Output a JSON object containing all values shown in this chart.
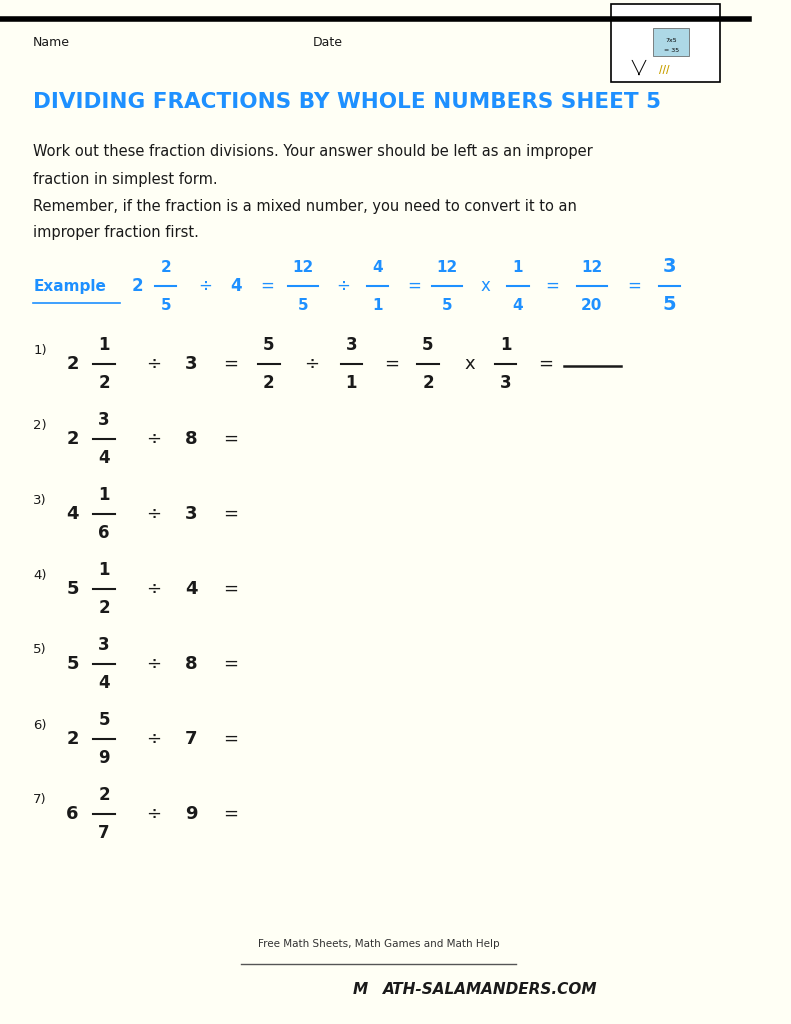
{
  "title": "DIVIDING FRACTIONS BY WHOLE NUMBERS SHEET 5",
  "title_color": "#1e90ff",
  "background_color": "#fffff5",
  "name_label": "Name",
  "date_label": "Date",
  "intro_line1": "Work out these fraction divisions. Your answer should be left as an improper",
  "intro_line2": "fraction in simplest form.",
  "intro_line3": "Remember, if the fraction is a mixed number, you need to convert it to an",
  "intro_line4": "improper fraction first.",
  "example_color": "#1e90ff",
  "text_color": "#1a1a1a",
  "problems": [
    {
      "num": "1",
      "whole": "2",
      "frac_n": "1",
      "frac_d": "2",
      "div": "3"
    },
    {
      "num": "2",
      "whole": "2",
      "frac_n": "3",
      "frac_d": "4",
      "div": "8"
    },
    {
      "num": "3",
      "whole": "4",
      "frac_n": "1",
      "frac_d": "6",
      "div": "3"
    },
    {
      "num": "4",
      "whole": "5",
      "frac_n": "1",
      "frac_d": "2",
      "div": "4"
    },
    {
      "num": "5",
      "whole": "5",
      "frac_n": "3",
      "frac_d": "4",
      "div": "8"
    },
    {
      "num": "6",
      "whole": "2",
      "frac_n": "5",
      "frac_d": "9",
      "div": "7"
    },
    {
      "num": "7",
      "whole": "6",
      "frac_n": "2",
      "frac_d": "7",
      "div": "9"
    }
  ]
}
